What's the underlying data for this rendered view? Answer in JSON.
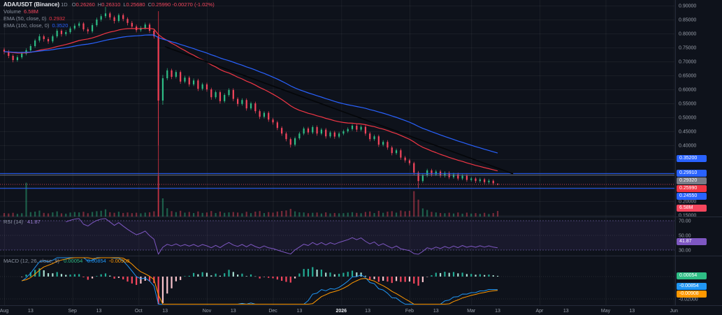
{
  "header": {
    "symbol": "ADA/USDT (Binance)",
    "timeframe": "1D",
    "ohlc": [
      {
        "label": "O",
        "value": "0.26260"
      },
      {
        "label": "H",
        "value": "0.26310"
      },
      {
        "label": "L",
        "value": "0.25680"
      },
      {
        "label": "C",
        "value": "0.25990"
      }
    ],
    "change": "-0.00270 (-1.02%)",
    "rows": [
      {
        "name": "volume",
        "label": "Volume",
        "value": "6.58M",
        "value_color": "#f6465d"
      },
      {
        "name": "ema50",
        "label": "EMA (50, close, 0)",
        "value": "0.2932",
        "value_color": "#f23645"
      },
      {
        "name": "ema100",
        "label": "EMA (100, close, 0)",
        "value": "0.3520",
        "value_color": "#2962ff"
      }
    ]
  },
  "rsi_pane": {
    "label": "RSI (14)",
    "value": "41.87",
    "value_color": "#9b7dd4",
    "ticks": [
      {
        "v": 70,
        "label": "70.00"
      },
      {
        "v": 50,
        "label": "50.00"
      },
      {
        "v": 30,
        "label": "30.00"
      }
    ],
    "badge": {
      "value": "41.87",
      "bg": "#7e57c2"
    }
  },
  "macd_pane": {
    "label": "MACD (12, 26, close, 9)",
    "values": [
      {
        "text": "0.00054",
        "color": "#2ebd85"
      },
      {
        "text": "-0.00854",
        "color": "#2196f3"
      },
      {
        "text": "-0.00908",
        "color": "#ff9800"
      }
    ],
    "ticks": [
      {
        "v": 0,
        "label": "0.00000"
      },
      {
        "v": -0.02,
        "label": "-0.02000"
      }
    ],
    "badges": [
      {
        "value": "0.00054",
        "y_value": 0.00054,
        "bg": "#2ebd85"
      },
      {
        "value": "-0.00854",
        "y_value": -0.00854,
        "bg": "#2196f3"
      },
      {
        "value": "-0.00908",
        "y_value": -0.00908,
        "bg": "#ff9800"
      }
    ]
  },
  "volume_badge": {
    "value": "6.58M",
    "bg": "#f6465d"
  },
  "chart_data": {
    "type": "candlestick",
    "title": "ADA/USDT (Binance) 1D with EMA(50), EMA(100), Volume, RSI(14), MACD(12,26,9)",
    "symbol": "ADA/USDT",
    "exchange": "Binance",
    "interval": "1D",
    "last_price": 0.2599,
    "y_axis": {
      "min": 0.15,
      "max": 0.905,
      "ticks": [
        {
          "v": 0.9,
          "label": "0.90000"
        },
        {
          "v": 0.85,
          "label": "0.85000"
        },
        {
          "v": 0.8,
          "label": "0.80000"
        },
        {
          "v": 0.75,
          "label": "0.75000"
        },
        {
          "v": 0.7,
          "label": "0.70000"
        },
        {
          "v": 0.65,
          "label": "0.65000"
        },
        {
          "v": 0.6,
          "label": "0.60000"
        },
        {
          "v": 0.55,
          "label": "0.55000"
        },
        {
          "v": 0.5,
          "label": "0.50000"
        },
        {
          "v": 0.45,
          "label": "0.45000"
        },
        {
          "v": 0.4,
          "label": "0.40000"
        },
        {
          "v": 0.35,
          "label": "0.35000"
        },
        {
          "v": 0.3,
          "label": "0.30000"
        },
        {
          "v": 0.25,
          "label": "0.25000"
        },
        {
          "v": 0.2,
          "label": "0.20000"
        },
        {
          "v": 0.15,
          "label": "0.15000"
        }
      ]
    },
    "x_axis": {
      "labels": [
        {
          "label": "Aug",
          "day": 0,
          "grid": true
        },
        {
          "label": "13",
          "day": 12
        },
        {
          "label": "Sep",
          "day": 31,
          "grid": true
        },
        {
          "label": "13",
          "day": 43
        },
        {
          "label": "Oct",
          "day": 61,
          "grid": true
        },
        {
          "label": "13",
          "day": 73
        },
        {
          "label": "Nov",
          "day": 92,
          "grid": true
        },
        {
          "label": "13",
          "day": 104
        },
        {
          "label": "Dec",
          "day": 122,
          "grid": true
        },
        {
          "label": "13",
          "day": 134
        },
        {
          "label": "2026",
          "day": 153,
          "grid": true,
          "strong": true
        },
        {
          "label": "13",
          "day": 165
        },
        {
          "label": "Feb",
          "day": 184,
          "grid": true
        },
        {
          "label": "13",
          "day": 196
        },
        {
          "label": "Mar",
          "day": 212,
          "grid": true
        },
        {
          "label": "13",
          "day": 224
        },
        {
          "label": "Apr",
          "day": 243,
          "grid": true
        },
        {
          "label": "13",
          "day": 255
        },
        {
          "label": "May",
          "day": 273,
          "grid": true
        },
        {
          "label": "13",
          "day": 285
        },
        {
          "label": "Jun",
          "day": 304,
          "grid": true
        }
      ]
    },
    "candles": [
      [
        0,
        0.742,
        0.749,
        0.726,
        0.735,
        4.1
      ],
      [
        2,
        0.735,
        0.741,
        0.712,
        0.72,
        3.6
      ],
      [
        4,
        0.72,
        0.726,
        0.697,
        0.705,
        4.4
      ],
      [
        6,
        0.705,
        0.722,
        0.699,
        0.715,
        3.2
      ],
      [
        8,
        0.715,
        0.735,
        0.709,
        0.728,
        3.9
      ],
      [
        10,
        0.728,
        0.747,
        0.722,
        0.74,
        40.0
      ],
      [
        12,
        0.74,
        0.762,
        0.734,
        0.755,
        5.2
      ],
      [
        14,
        0.755,
        0.781,
        0.749,
        0.775,
        5.8
      ],
      [
        16,
        0.775,
        0.798,
        0.768,
        0.79,
        7.0
      ],
      [
        18,
        0.79,
        0.796,
        0.771,
        0.78,
        4.3
      ],
      [
        20,
        0.78,
        0.787,
        0.763,
        0.772,
        3.7
      ],
      [
        22,
        0.772,
        0.796,
        0.766,
        0.79,
        4.9
      ],
      [
        24,
        0.79,
        0.817,
        0.784,
        0.81,
        6.1
      ],
      [
        26,
        0.81,
        0.816,
        0.789,
        0.798,
        3.8
      ],
      [
        28,
        0.798,
        0.812,
        0.791,
        0.805,
        3.4
      ],
      [
        30,
        0.805,
        0.825,
        0.799,
        0.818,
        4.7
      ],
      [
        32,
        0.818,
        0.836,
        0.812,
        0.828,
        5.3
      ],
      [
        34,
        0.828,
        0.843,
        0.821,
        0.836,
        4.9
      ],
      [
        36,
        0.836,
        0.841,
        0.808,
        0.815,
        5.6
      ],
      [
        38,
        0.815,
        0.822,
        0.799,
        0.808,
        3.9
      ],
      [
        40,
        0.808,
        0.837,
        0.802,
        0.83,
        5.4
      ],
      [
        42,
        0.83,
        0.857,
        0.824,
        0.85,
        6.3
      ],
      [
        44,
        0.85,
        0.869,
        0.843,
        0.862,
        6.8
      ],
      [
        46,
        0.862,
        0.895,
        0.855,
        0.872,
        8.5
      ],
      [
        48,
        0.872,
        0.878,
        0.849,
        0.858,
        5.1
      ],
      [
        50,
        0.858,
        0.864,
        0.836,
        0.845,
        4.4
      ],
      [
        52,
        0.845,
        0.872,
        0.839,
        0.866,
        5.7
      ],
      [
        54,
        0.866,
        0.872,
        0.844,
        0.852,
        4.2
      ],
      [
        56,
        0.852,
        0.858,
        0.829,
        0.838,
        4.8
      ],
      [
        58,
        0.838,
        0.845,
        0.817,
        0.825,
        4.0
      ],
      [
        60,
        0.825,
        0.832,
        0.804,
        0.812,
        4.5
      ],
      [
        62,
        0.812,
        0.827,
        0.806,
        0.82,
        3.8
      ],
      [
        64,
        0.82,
        0.839,
        0.814,
        0.832,
        4.6
      ],
      [
        66,
        0.832,
        0.838,
        0.802,
        0.81,
        5.0
      ],
      [
        68,
        0.81,
        0.816,
        0.782,
        0.79,
        6.2
      ],
      [
        70,
        0.79,
        0.795,
        0.4,
        0.56,
        48.0
      ],
      [
        72,
        0.56,
        0.652,
        0.545,
        0.64,
        21.5
      ],
      [
        74,
        0.64,
        0.676,
        0.633,
        0.668,
        9.8
      ],
      [
        76,
        0.668,
        0.674,
        0.637,
        0.645,
        6.4
      ],
      [
        78,
        0.645,
        0.669,
        0.639,
        0.662,
        5.2
      ],
      [
        80,
        0.662,
        0.668,
        0.62,
        0.628,
        6.8
      ],
      [
        82,
        0.628,
        0.649,
        0.622,
        0.642,
        4.6
      ],
      [
        84,
        0.642,
        0.648,
        0.61,
        0.618,
        5.4
      ],
      [
        86,
        0.618,
        0.639,
        0.612,
        0.632,
        4.1
      ],
      [
        88,
        0.632,
        0.638,
        0.594,
        0.602,
        6.0
      ],
      [
        90,
        0.602,
        0.624,
        0.596,
        0.618,
        4.3
      ],
      [
        92,
        0.618,
        0.624,
        0.592,
        0.6,
        4.8
      ],
      [
        94,
        0.6,
        0.606,
        0.563,
        0.572,
        6.5
      ],
      [
        96,
        0.572,
        0.596,
        0.566,
        0.59,
        4.2
      ],
      [
        98,
        0.59,
        0.596,
        0.549,
        0.558,
        5.9
      ],
      [
        100,
        0.558,
        0.586,
        0.552,
        0.58,
        4.4
      ],
      [
        102,
        0.58,
        0.604,
        0.574,
        0.598,
        4.9
      ],
      [
        104,
        0.598,
        0.604,
        0.558,
        0.566,
        5.3
      ],
      [
        106,
        0.566,
        0.572,
        0.539,
        0.548,
        4.7
      ],
      [
        108,
        0.548,
        0.568,
        0.542,
        0.562,
        3.8
      ],
      [
        110,
        0.562,
        0.568,
        0.524,
        0.532,
        5.6
      ],
      [
        112,
        0.532,
        0.556,
        0.526,
        0.55,
        4.0
      ],
      [
        114,
        0.55,
        0.556,
        0.514,
        0.522,
        5.8
      ],
      [
        116,
        0.522,
        0.528,
        0.494,
        0.502,
        6.4
      ],
      [
        118,
        0.502,
        0.522,
        0.496,
        0.516,
        4.1
      ],
      [
        120,
        0.516,
        0.522,
        0.484,
        0.492,
        5.2
      ],
      [
        122,
        0.492,
        0.498,
        0.474,
        0.482,
        4.6
      ],
      [
        124,
        0.482,
        0.488,
        0.454,
        0.462,
        5.9
      ],
      [
        126,
        0.462,
        0.468,
        0.434,
        0.442,
        6.6
      ],
      [
        128,
        0.442,
        0.448,
        0.414,
        0.422,
        7.2
      ],
      [
        130,
        0.422,
        0.428,
        0.392,
        0.402,
        9.0
      ],
      [
        132,
        0.402,
        0.431,
        0.396,
        0.425,
        6.1
      ],
      [
        134,
        0.425,
        0.448,
        0.419,
        0.442,
        5.0
      ],
      [
        136,
        0.442,
        0.466,
        0.436,
        0.46,
        4.8
      ],
      [
        138,
        0.46,
        0.466,
        0.438,
        0.446,
        3.9
      ],
      [
        140,
        0.446,
        0.471,
        0.44,
        0.465,
        4.4
      ],
      [
        142,
        0.465,
        0.471,
        0.434,
        0.442,
        4.7
      ],
      [
        144,
        0.442,
        0.462,
        0.436,
        0.456,
        3.6
      ],
      [
        146,
        0.456,
        0.462,
        0.424,
        0.432,
        4.9
      ],
      [
        148,
        0.432,
        0.452,
        0.426,
        0.446,
        3.7
      ],
      [
        150,
        0.446,
        0.452,
        0.423,
        0.431,
        4.2
      ],
      [
        152,
        0.431,
        0.448,
        0.425,
        0.442,
        3.8
      ],
      [
        154,
        0.442,
        0.456,
        0.436,
        0.45,
        4.0
      ],
      [
        156,
        0.45,
        0.464,
        0.444,
        0.458,
        4.5
      ],
      [
        158,
        0.458,
        0.476,
        0.452,
        0.47,
        5.1
      ],
      [
        160,
        0.47,
        0.476,
        0.448,
        0.456,
        4.3
      ],
      [
        162,
        0.456,
        0.472,
        0.45,
        0.466,
        3.9
      ],
      [
        164,
        0.466,
        0.472,
        0.434,
        0.442,
        5.4
      ],
      [
        166,
        0.442,
        0.448,
        0.414,
        0.422,
        6.0
      ],
      [
        168,
        0.422,
        0.438,
        0.416,
        0.432,
        4.1
      ],
      [
        170,
        0.432,
        0.438,
        0.394,
        0.402,
        6.7
      ],
      [
        172,
        0.402,
        0.418,
        0.396,
        0.412,
        4.4
      ],
      [
        174,
        0.412,
        0.418,
        0.384,
        0.392,
        5.8
      ],
      [
        176,
        0.392,
        0.398,
        0.364,
        0.372,
        6.3
      ],
      [
        178,
        0.372,
        0.388,
        0.366,
        0.382,
        4.6
      ],
      [
        180,
        0.382,
        0.388,
        0.348,
        0.356,
        7.1
      ],
      [
        182,
        0.356,
        0.362,
        0.338,
        0.346,
        6.2
      ],
      [
        184,
        0.346,
        0.352,
        0.328,
        0.336,
        6.8
      ],
      [
        186,
        0.336,
        0.341,
        0.292,
        0.302,
        30.0
      ],
      [
        188,
        0.302,
        0.308,
        0.246,
        0.272,
        20.0
      ],
      [
        190,
        0.272,
        0.298,
        0.266,
        0.292,
        9.6
      ],
      [
        192,
        0.292,
        0.316,
        0.286,
        0.31,
        7.8
      ],
      [
        194,
        0.31,
        0.316,
        0.288,
        0.296,
        5.5
      ],
      [
        196,
        0.296,
        0.312,
        0.29,
        0.306,
        4.8
      ],
      [
        198,
        0.306,
        0.312,
        0.284,
        0.291,
        4.2
      ],
      [
        200,
        0.291,
        0.307,
        0.285,
        0.301,
        3.9
      ],
      [
        202,
        0.301,
        0.307,
        0.279,
        0.286,
        4.5
      ],
      [
        204,
        0.286,
        0.302,
        0.28,
        0.296,
        3.6
      ],
      [
        206,
        0.296,
        0.302,
        0.274,
        0.281,
        4.8
      ],
      [
        208,
        0.281,
        0.297,
        0.275,
        0.291,
        3.4
      ],
      [
        210,
        0.291,
        0.297,
        0.269,
        0.276,
        4.6
      ],
      [
        212,
        0.276,
        0.287,
        0.27,
        0.281,
        3.5
      ],
      [
        214,
        0.281,
        0.286,
        0.265,
        0.272,
        4.0
      ],
      [
        216,
        0.272,
        0.284,
        0.266,
        0.278,
        3.2
      ],
      [
        218,
        0.278,
        0.283,
        0.261,
        0.268,
        4.4
      ],
      [
        220,
        0.268,
        0.279,
        0.262,
        0.273,
        3.0
      ],
      [
        222,
        0.273,
        0.278,
        0.257,
        0.264,
        4.1
      ],
      [
        224,
        0.2626,
        0.2631,
        0.2568,
        0.2599,
        6.58
      ]
    ],
    "overlays": {
      "ema50": {
        "period_days": 50,
        "color": "#f23645",
        "last": 0.2932
      },
      "ema100": {
        "period_days": 100,
        "color": "#2962ff",
        "last": 0.352
      },
      "trendline": {
        "from": {
          "day": 73,
          "price": 0.753
        },
        "to": {
          "day": 231,
          "price": 0.298
        },
        "color": "#05070a"
      },
      "vertical_line": {
        "day": 70,
        "color": "rgba(242,54,69,0.75)"
      },
      "horizontal_lines": [
        {
          "price": 0.2991,
          "color": "#2962ff",
          "label": "0.29910"
        },
        {
          "price": 0.2932,
          "color": "#6b7280",
          "label": "0.29320"
        },
        {
          "price": 0.2455,
          "color": "#2962ff",
          "label": "0.24550"
        }
      ]
    },
    "price_badges": [
      {
        "value": "0.35200",
        "price": 0.352,
        "bg": "#2962ff"
      },
      {
        "value": "0.29910",
        "price": 0.2991,
        "bg": "#2962ff"
      },
      {
        "value": "0.29320",
        "price": 0.2932,
        "bg": "#787b86"
      },
      {
        "value": "0.25990",
        "price": 0.2599,
        "bg": "#f23645"
      },
      {
        "value": "0.24550",
        "price": 0.2455,
        "bg": "#2962ff"
      }
    ],
    "colors": {
      "up": "#2ebd85",
      "down": "#f6465d",
      "vol_up": "rgba(46,189,133,0.45)",
      "vol_down": "rgba(246,70,93,0.45)",
      "grid": "rgba(255,255,255,0.05)",
      "separator": "#252b39",
      "axis_text": "#9aa0ab",
      "rsi_line": "#7e57c2",
      "rsi_band_fill": "rgba(126,87,194,0.10)",
      "rsi_band_line": "rgba(150,130,220,0.45)",
      "macd_line": "#2196f3",
      "signal_line": "#ff9800",
      "hist_up": "#22ab94",
      "hist_up_pale": "#a8ded1",
      "hist_down": "#f6465d",
      "hist_down_pale": "#f8c3cb"
    }
  }
}
